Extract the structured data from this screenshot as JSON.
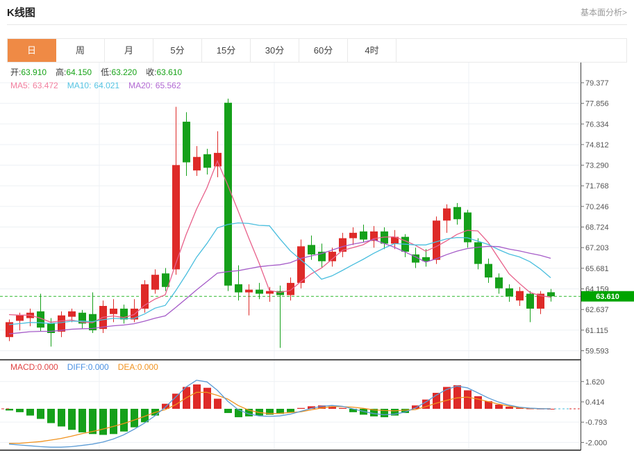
{
  "header": {
    "title": "K线图",
    "more_link": "基本面分析>"
  },
  "tabs": {
    "items": [
      {
        "label": "日",
        "active": true
      },
      {
        "label": "周",
        "active": false
      },
      {
        "label": "月",
        "active": false
      },
      {
        "label": "5分",
        "active": false
      },
      {
        "label": "15分",
        "active": false
      },
      {
        "label": "30分",
        "active": false
      },
      {
        "label": "60分",
        "active": false
      },
      {
        "label": "4时",
        "active": false
      }
    ]
  },
  "legend_ohlc": {
    "label_color": "#3a3a3a",
    "value_color": "#17a317",
    "items": [
      {
        "label": "开:",
        "value": "63.910"
      },
      {
        "label": "高:",
        "value": "64.150"
      },
      {
        "label": "低:",
        "value": "63.220"
      },
      {
        "label": "收:",
        "value": "63.610"
      }
    ]
  },
  "legend_ma": {
    "items": [
      {
        "label": "MA5:",
        "value": "63.472",
        "color": "#f27e9e"
      },
      {
        "label": "MA10:",
        "value": "64.021",
        "color": "#55c3e2"
      },
      {
        "label": "MA20:",
        "value": "65.562",
        "color": "#b168d2"
      }
    ]
  },
  "legend_macd": {
    "items": [
      {
        "label": "MACD:",
        "value": "0.000",
        "color": "#e04343"
      },
      {
        "label": "DIFF:",
        "value": "0.000",
        "color": "#4a90e2"
      },
      {
        "label": "DEA:",
        "value": "0.000",
        "color": "#f0921e"
      }
    ]
  },
  "colors": {
    "up": "#de2a28",
    "down": "#15a01a",
    "badge": "#00a400",
    "current_line": "#2db82d",
    "ma5": "#e8608a",
    "ma10": "#49bede",
    "ma20": "#a55bc8",
    "diff": "#5b9bd5",
    "dea": "#f0921e",
    "tab_active": "#ef8a45",
    "grid": "#edf0f4",
    "axis": "#3a3a3a"
  },
  "chart_data": {
    "type": "candlestick+macd",
    "title": "K线图",
    "interval": "日",
    "legend_position": "top-left",
    "grid": true,
    "price_ticks": [
      79.377,
      77.856,
      76.334,
      74.812,
      73.29,
      71.768,
      70.246,
      68.724,
      67.203,
      65.681,
      64.159,
      62.637,
      61.115,
      59.593
    ],
    "current_price": 63.61,
    "ohlc_last": {
      "open": 63.91,
      "high": 64.15,
      "low": 63.22,
      "close": 63.61
    },
    "ma_last": {
      "ma5": 63.472,
      "ma10": 64.021,
      "ma20": 65.562
    },
    "ma_seeds": {
      "ma5": 62.4,
      "ma10": 61.5,
      "ma20": 60.8
    },
    "candles": [
      [
        60.6,
        61.9,
        60.3,
        61.7
      ],
      [
        61.8,
        62.4,
        61.1,
        62.2
      ],
      [
        62.0,
        62.7,
        61.4,
        62.4
      ],
      [
        62.5,
        63.8,
        61.0,
        61.3
      ],
      [
        61.6,
        62.0,
        59.9,
        60.9
      ],
      [
        61.0,
        62.5,
        60.6,
        62.2
      ],
      [
        62.1,
        62.7,
        61.7,
        62.5
      ],
      [
        62.4,
        62.6,
        61.2,
        61.6
      ],
      [
        62.3,
        63.9,
        60.9,
        61.1
      ],
      [
        61.2,
        63.3,
        60.9,
        62.9
      ],
      [
        62.3,
        63.4,
        61.7,
        62.7
      ],
      [
        62.7,
        63.0,
        61.6,
        61.9
      ],
      [
        61.9,
        63.4,
        61.7,
        62.7
      ],
      [
        62.7,
        64.8,
        62.4,
        64.5
      ],
      [
        64.1,
        65.6,
        63.8,
        65.2
      ],
      [
        65.3,
        65.7,
        64.0,
        64.3
      ],
      [
        65.6,
        77.6,
        65.2,
        73.3
      ],
      [
        76.5,
        77.2,
        72.5,
        73.5
      ],
      [
        72.9,
        74.7,
        72.5,
        73.9
      ],
      [
        74.1,
        74.5,
        72.6,
        73.1
      ],
      [
        73.2,
        75.8,
        72.4,
        74.2
      ],
      [
        77.9,
        78.2,
        64.0,
        64.4
      ],
      [
        64.5,
        65.9,
        63.3,
        63.9
      ],
      [
        63.9,
        64.5,
        62.2,
        64.1
      ],
      [
        64.1,
        64.6,
        63.4,
        63.8
      ],
      [
        63.8,
        64.3,
        63.2,
        64.0
      ],
      [
        64.0,
        64.4,
        59.8,
        63.7
      ],
      [
        63.7,
        65.0,
        63.3,
        64.6
      ],
      [
        64.6,
        67.8,
        64.2,
        67.3
      ],
      [
        67.4,
        68.1,
        66.3,
        66.7
      ],
      [
        66.9,
        67.5,
        65.7,
        66.2
      ],
      [
        66.2,
        67.2,
        65.8,
        66.9
      ],
      [
        66.9,
        68.3,
        66.5,
        67.9
      ],
      [
        67.9,
        68.7,
        67.4,
        68.3
      ],
      [
        68.4,
        68.9,
        67.6,
        67.8
      ],
      [
        67.7,
        68.8,
        67.2,
        68.4
      ],
      [
        68.4,
        68.7,
        67.1,
        67.5
      ],
      [
        67.5,
        68.5,
        67.1,
        68.0
      ],
      [
        68.0,
        68.2,
        66.5,
        66.9
      ],
      [
        66.7,
        67.2,
        65.7,
        66.1
      ],
      [
        66.5,
        67.1,
        65.8,
        66.2
      ],
      [
        66.3,
        69.5,
        66.0,
        69.2
      ],
      [
        69.2,
        70.4,
        68.3,
        70.1
      ],
      [
        70.2,
        70.5,
        68.9,
        69.3
      ],
      [
        69.8,
        70.0,
        67.2,
        67.6
      ],
      [
        67.6,
        67.9,
        65.6,
        66.0
      ],
      [
        66.0,
        66.4,
        64.6,
        65.0
      ],
      [
        65.0,
        65.3,
        63.8,
        64.2
      ],
      [
        64.2,
        64.5,
        63.2,
        63.6
      ],
      [
        63.3,
        64.3,
        62.9,
        64.0
      ],
      [
        63.8,
        64.0,
        61.7,
        62.7
      ],
      [
        62.7,
        64.0,
        62.3,
        63.8
      ],
      [
        63.91,
        64.15,
        63.22,
        63.61
      ]
    ],
    "macd": {
      "ticks": [
        1.62,
        0.414,
        -0.793,
        -2.0
      ],
      "last": {
        "macd": 0.0,
        "diff": 0.0,
        "dea": 0.0
      },
      "hist": [
        -0.1,
        -0.2,
        -0.4,
        -0.6,
        -0.85,
        -1.05,
        -1.25,
        -1.4,
        -1.5,
        -1.55,
        -1.5,
        -1.35,
        -1.1,
        -0.8,
        -0.4,
        0.3,
        0.9,
        1.3,
        1.45,
        1.25,
        0.6,
        -0.25,
        -0.5,
        -0.45,
        -0.4,
        -0.35,
        -0.3,
        -0.2,
        0.05,
        0.15,
        0.2,
        0.15,
        0.05,
        -0.2,
        -0.35,
        -0.45,
        -0.5,
        -0.4,
        -0.25,
        0.2,
        0.55,
        0.95,
        1.3,
        1.4,
        1.1,
        0.75,
        0.45,
        0.25,
        0.12,
        0.06,
        0.02,
        0.01,
        0.0
      ],
      "diff": [
        -2.1,
        -2.15,
        -2.2,
        -2.25,
        -2.28,
        -2.28,
        -2.25,
        -2.18,
        -2.1,
        -1.98,
        -1.8,
        -1.55,
        -1.22,
        -0.85,
        -0.42,
        0.1,
        0.7,
        1.3,
        1.7,
        1.6,
        1.1,
        0.45,
        -0.05,
        -0.3,
        -0.42,
        -0.45,
        -0.42,
        -0.32,
        -0.15,
        0.02,
        0.15,
        0.2,
        0.15,
        0.0,
        -0.15,
        -0.28,
        -0.35,
        -0.32,
        -0.2,
        0.05,
        0.4,
        0.8,
        1.15,
        1.35,
        1.25,
        0.95,
        0.65,
        0.4,
        0.22,
        0.1,
        0.04,
        0.01,
        0.0
      ],
      "dea": [
        -2.05,
        -2.05,
        -2.0,
        -1.95,
        -1.86,
        -1.76,
        -1.63,
        -1.48,
        -1.35,
        -1.21,
        -1.05,
        -0.88,
        -0.67,
        -0.45,
        -0.22,
        -0.05,
        0.25,
        0.65,
        0.98,
        0.98,
        0.8,
        0.58,
        0.2,
        -0.08,
        -0.22,
        -0.28,
        -0.27,
        -0.22,
        -0.18,
        -0.06,
        0.05,
        0.13,
        0.13,
        0.1,
        0.03,
        -0.06,
        -0.1,
        -0.12,
        -0.08,
        -0.05,
        0.13,
        0.33,
        0.5,
        0.65,
        0.7,
        0.58,
        0.43,
        0.28,
        0.16,
        0.07,
        0.03,
        0.01,
        0.0
      ]
    }
  }
}
